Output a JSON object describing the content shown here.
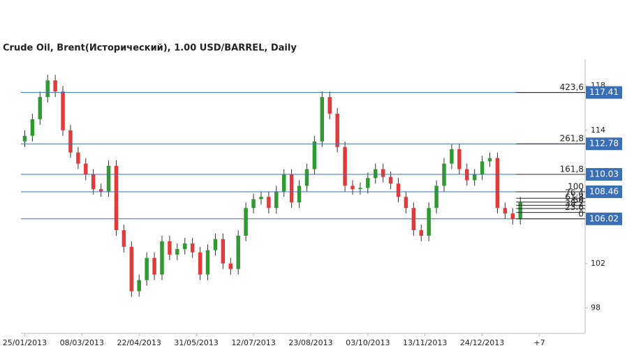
{
  "chart_data": {
    "type": "candlestick",
    "title": "Crude Oil, Brent(Исторический), 1.00 USD/BARREL, Daily",
    "x": [
      0,
      4,
      8,
      12,
      16,
      20,
      24,
      28,
      32,
      36,
      40,
      44,
      48,
      52,
      56,
      60,
      64,
      68,
      72,
      76,
      80,
      84,
      88,
      92,
      96,
      100,
      104,
      108,
      112,
      116,
      120,
      124,
      128,
      132,
      136,
      140,
      144,
      148,
      152,
      156,
      160,
      164,
      168,
      172,
      176,
      180,
      184,
      188,
      192,
      196,
      200,
      204,
      208,
      212,
      216,
      220,
      224,
      228,
      232,
      236,
      240,
      244,
      248,
      252,
      256,
      260
    ],
    "open": [
      113,
      113.5,
      115,
      117,
      118.5,
      117.5,
      114,
      112,
      111,
      110,
      108.7,
      108.5,
      110.8,
      105,
      103.5,
      99.5,
      100.5,
      102.5,
      101,
      104,
      102.8,
      103.3,
      103.8,
      103,
      101,
      103.2,
      104.2,
      102,
      101.5,
      104.5,
      107,
      107.8,
      108,
      107,
      108.5,
      110,
      107.5,
      109,
      110.5,
      113,
      117,
      115.5,
      112.5,
      109,
      108.7,
      108.8,
      109.7,
      110.5,
      109.8,
      109.2,
      108,
      107,
      105,
      104.5,
      107,
      109,
      111,
      112.3,
      110.5,
      109.5,
      110,
      111.2,
      111.5,
      107,
      106.5,
      106
    ],
    "high": [
      114,
      115.5,
      117.5,
      119,
      119,
      118,
      114.5,
      112.5,
      111.5,
      110.5,
      109.2,
      111.3,
      111.3,
      105.5,
      104,
      101,
      103,
      103,
      104.5,
      104.5,
      103.8,
      104.3,
      104.3,
      103.5,
      103.7,
      104.7,
      104.7,
      102.5,
      105,
      107.5,
      108.3,
      108.5,
      108.5,
      109,
      110.5,
      110.5,
      109.5,
      111,
      113.5,
      117.5,
      117.5,
      116,
      113,
      109.5,
      109.3,
      110.2,
      111,
      111,
      110.3,
      109.7,
      108.5,
      107.5,
      105.5,
      107.5,
      109.5,
      111.5,
      112.8,
      112.8,
      111,
      110.5,
      111.7,
      112,
      112,
      107.5,
      107,
      108
    ],
    "low": [
      112.5,
      113,
      114.5,
      116.5,
      117,
      113.5,
      111.5,
      110.5,
      109.5,
      108.2,
      108,
      108,
      104.5,
      103,
      99,
      99,
      100,
      100.5,
      100.5,
      102.3,
      102.3,
      102.8,
      102.5,
      100.5,
      100.5,
      102.7,
      101.5,
      101,
      101,
      104,
      106.5,
      107.3,
      106.5,
      106.5,
      108,
      107,
      107,
      108.5,
      110,
      112.5,
      115,
      112,
      108.5,
      108.2,
      108.2,
      108.3,
      109.2,
      109.3,
      108.7,
      107.5,
      106.5,
      104.5,
      104,
      104,
      106.5,
      108.5,
      110.5,
      110,
      109,
      109,
      109.5,
      110.7,
      106.5,
      106,
      105.5,
      105.5
    ],
    "close": [
      113.5,
      115,
      117,
      118.5,
      117.5,
      114,
      112,
      111,
      110,
      108.7,
      108.5,
      110.8,
      105,
      103.5,
      99.5,
      100.5,
      102.5,
      101,
      104,
      102.8,
      103.3,
      103.8,
      103,
      101,
      103.2,
      104.2,
      102,
      101.5,
      104.5,
      107,
      107.8,
      108,
      107,
      108.5,
      110,
      107.5,
      109,
      110.5,
      113,
      117,
      115.5,
      112.5,
      109,
      108.7,
      108.8,
      109.7,
      110.5,
      109.8,
      109.2,
      108,
      107,
      105,
      104.5,
      107,
      109,
      111,
      112.3,
      110.5,
      109.5,
      110,
      111.2,
      111.5,
      107,
      106.5,
      106,
      107.5
    ],
    "up_color": "#2f9a2f",
    "down_color": "#e23a3a",
    "xlim": [
      -2,
      294
    ],
    "xticks": [
      {
        "value": 0,
        "label": "25/01/2013"
      },
      {
        "value": 30,
        "label": "08/03/2013"
      },
      {
        "value": 60,
        "label": "22/04/2013"
      },
      {
        "value": 90,
        "label": "31/05/2013"
      },
      {
        "value": 120,
        "label": "12/07/2013"
      },
      {
        "value": 150,
        "label": "23/08/2013"
      },
      {
        "value": 180,
        "label": "03/10/2013"
      },
      {
        "value": 210,
        "label": "13/11/2013"
      },
      {
        "value": 240,
        "label": "24/12/2013"
      },
      {
        "value": 270,
        "label": "+7"
      }
    ],
    "ylim": [
      95.7,
      120.4
    ],
    "yticks": [
      98,
      102,
      114,
      118
    ],
    "fib_color": "#3b6fb5",
    "fib_levels": [
      {
        "ratio": {
          "value": 423.6,
          "label": "423,6"
        },
        "price": 117.41,
        "extended": true
      },
      {
        "ratio": {
          "value": 261.8,
          "label": "261,8"
        },
        "price": 112.78,
        "extended": true
      },
      {
        "ratio": {
          "value": 161.8,
          "label": "161,8"
        },
        "price": 110.03,
        "extended": true
      },
      {
        "ratio": 100,
        "price": 108.46,
        "extended": true
      },
      {
        "ratio": 76.4,
        "price": 107.88,
        "extended": false
      },
      {
        "ratio": 61.8,
        "price": 107.53,
        "extended": false
      },
      {
        "ratio": 50,
        "price": 107.24,
        "extended": false
      },
      {
        "ratio": 38.2,
        "price": 106.95,
        "extended": false
      },
      {
        "ratio": 23.6,
        "price": 106.6,
        "extended": false
      },
      {
        "ratio": 0,
        "price": 106.02,
        "extended": true
      }
    ]
  }
}
